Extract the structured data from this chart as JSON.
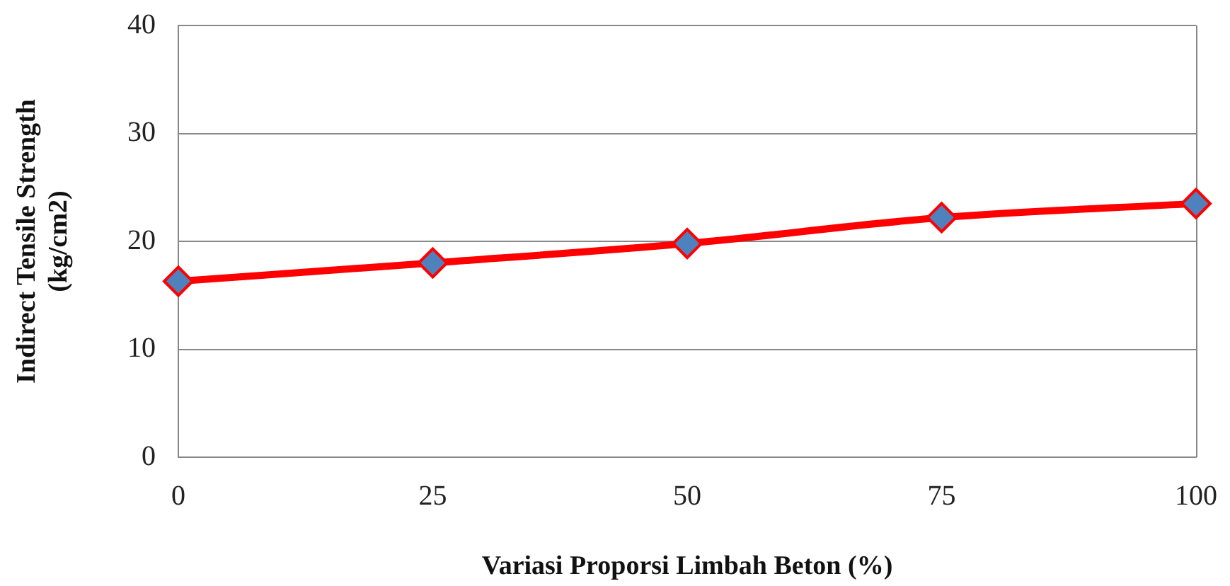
{
  "chart_data": {
    "type": "line",
    "xlabel": "Variasi Proporsi Limbah Beton (%)",
    "ylabel": "Indirect Tensile Strength\n(kg/cm2)",
    "x": [
      0,
      25,
      50,
      75,
      100
    ],
    "series": [
      {
        "color": "#ff0000",
        "colors": [
          "#4f81bd",
          "#4f81bd",
          "#4f81bd",
          "#4f81bd",
          "#4f81bd"
        ],
        "values": [
          16.3,
          18.0,
          19.8,
          22.2,
          23.5
        ]
      }
    ],
    "xlim": [
      0,
      100
    ],
    "xticks": [
      0,
      25,
      50,
      75,
      100
    ],
    "ylim": [
      0,
      40
    ],
    "yticks": [
      0,
      10,
      20,
      30,
      40
    ],
    "grid": "y",
    "marker": "diamond",
    "line_style": "solid"
  }
}
